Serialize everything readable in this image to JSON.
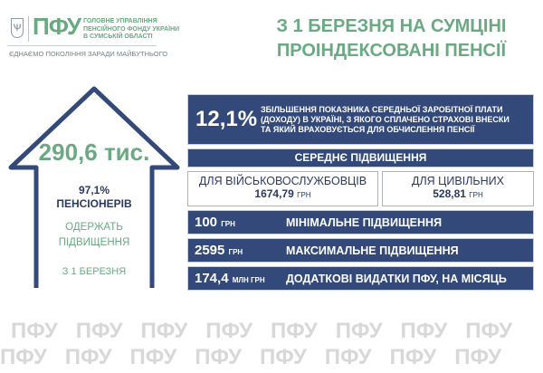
{
  "logo": {
    "brand": "ПФУ",
    "org": "ГОЛОВНЕ УПРАВЛІННЯ ПЕНСІЙНОГО ФОНДУ УКРАЇНИ В СУМСЬКІЙ ОБЛАСТІ",
    "org_lines": [
      "ГОЛОВНЕ УПРАВЛІННЯ",
      "ПЕНСІЙНОГО ФОНДУ УКРАЇНИ",
      "В СУМСЬКІЙ ОБЛАСТІ"
    ],
    "slogan": "ЄДНАЄМО ПОКОЛІННЯ ЗАРАДИ МАЙБУТНЬОГО",
    "emblem": "trident-icon"
  },
  "title": {
    "line1": "З 1 БЕРЕЗНЯ НА СУМЦІНІ",
    "line2": "ПРОІНДЕКСОВАНІ ПЕНСІЇ"
  },
  "house": {
    "count": "290,6 тис.",
    "percent": "97,1%",
    "pensioners": "ПЕНСІОНЕРІВ",
    "receive1": "ОДЕРЖАТЬ",
    "receive2": "ПІДВИЩЕННЯ",
    "date": "З 1 БЕРЕЗНЯ"
  },
  "index": {
    "value": "12,1%",
    "lines": [
      "ЗБІЛЬШЕННЯ ПОКАЗНИКА СЕРЕДНЬОЇ ЗАРОБІТНОЇ ПЛАТИ",
      "(ДОХОДУ) В УКРАЇНІ, З ЯКОГО СПЛАЧЕНО СТРАХОВІ ВНЕСКИ",
      "ТА ЯКИЙ ВРАХОВУЄТЬСЯ ДЛЯ ОБЧИСЛЕННЯ ПЕНСІЇ"
    ]
  },
  "average": {
    "heading": "СЕРЕДНЄ ПІДВИЩЕННЯ",
    "military": {
      "label": "ДЛЯ ВІЙСЬКОВОСЛУЖБОВЦІВ",
      "value": "1674,79",
      "unit": "ГРН"
    },
    "civil": {
      "label": "ДЛЯ ЦИВІЛЬНИХ",
      "value": "528,81",
      "unit": "ГРН"
    }
  },
  "rows": [
    {
      "value": "100",
      "unit": "ГРН",
      "label": "МІНІМАЛЬНЕ ПІДВИЩЕННЯ"
    },
    {
      "value": "2595",
      "unit": "ГРН",
      "label": "МАКСИМАЛЬНЕ ПІДВИЩЕННЯ"
    },
    {
      "value": "174,4",
      "unit": "МЛН ГРН",
      "label": "ДОДАТКОВІ ВИДАТКИ ПФУ, НА МІСЯЦЬ"
    }
  ],
  "watermark": "ПФУ",
  "colors": {
    "blue": "#33497a",
    "green": "#6aaa82"
  }
}
